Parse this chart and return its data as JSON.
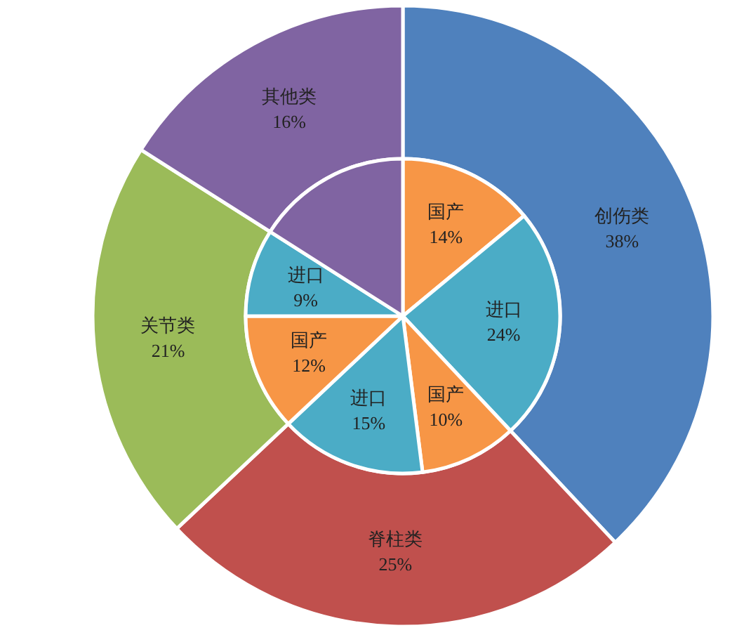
{
  "chart_data": [
    {
      "type": "donut",
      "categories": [
        "创伤类",
        "脊柱类",
        "关节类",
        "其他类"
      ],
      "values": [
        38,
        25,
        21,
        16
      ],
      "colors": [
        "#4f81bd",
        "#c0504d",
        "#9bbb59",
        "#8064a2"
      ],
      "value_labels": [
        "38%",
        "25%",
        "21%",
        "16%"
      ]
    },
    {
      "type": "pie",
      "categories": [
        "国产",
        "进口",
        "国产",
        "进口",
        "国产",
        "进口",
        null
      ],
      "values": [
        14,
        24,
        10,
        15,
        12,
        9,
        16
      ],
      "colors": [
        "#f79646",
        "#4bacc6",
        "#f79646",
        "#4bacc6",
        "#f79646",
        "#4bacc6",
        "#8064a2"
      ],
      "value_labels": [
        "14%",
        "24%",
        "10%",
        "15%",
        "12%",
        "9%",
        null
      ]
    }
  ]
}
